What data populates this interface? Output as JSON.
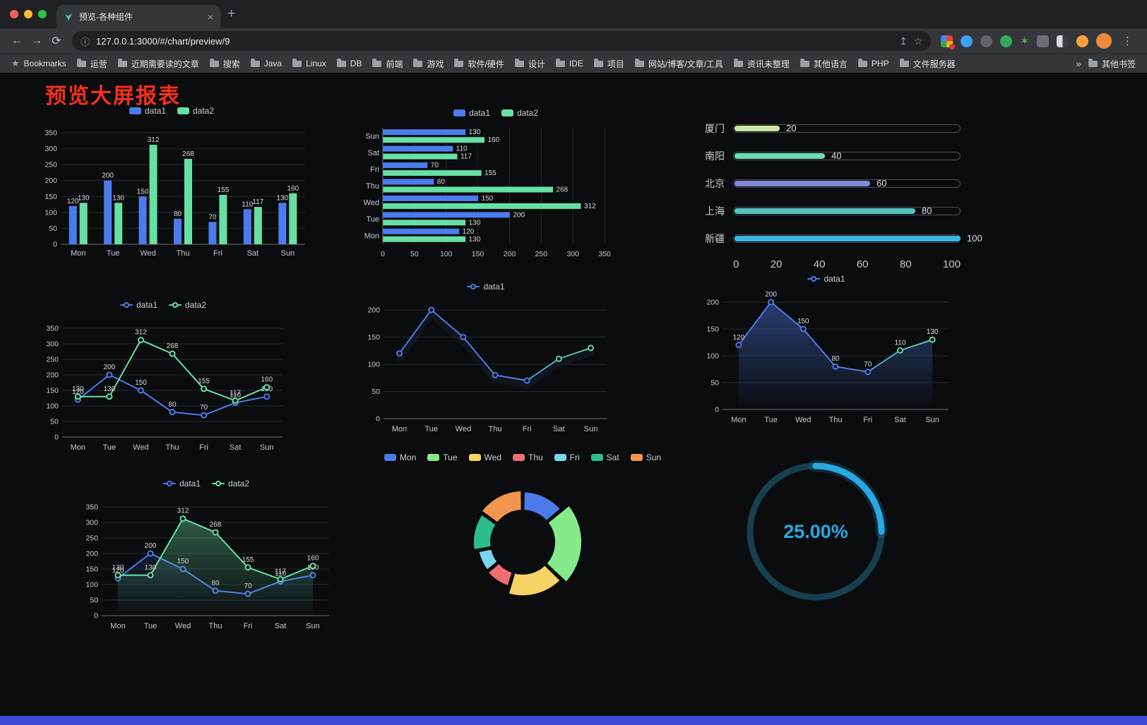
{
  "browser": {
    "tab_title": "预览-各种组件",
    "close_label": "×",
    "new_tab_label": "+",
    "back_icon": "←",
    "forward_icon": "→",
    "reload_icon": "⟳",
    "info_icon": "ⓘ",
    "share_icon": "↥",
    "star_icon": "☆",
    "menu_icon": "⋮",
    "url": "127.0.0.1:3000/#/chart/preview/9",
    "bookmarks_bar": {
      "first_item": "Bookmarks",
      "folders": [
        "运营",
        "近期需要读的文章",
        "搜索",
        "Java",
        "Linux",
        "DB",
        "前端",
        "游戏",
        "软件/硬件",
        "设计",
        "IDE",
        "项目",
        "网站/博客/文章/工具",
        "资讯未整理",
        "其他语言",
        "PHP",
        "文件服务器"
      ],
      "overflow": "»",
      "other_bookmarks": "其他书签"
    }
  },
  "page": {
    "title": "预览大屏报表",
    "title_color": "#f5301d",
    "footer_color": "#3c4ad6"
  },
  "chart_data": [
    {
      "type": "bar",
      "legend_marker": "bar",
      "show_legend": true,
      "show_labels": true,
      "categories": [
        "Mon",
        "Tue",
        "Wed",
        "Thu",
        "Fri",
        "Sat",
        "Sun"
      ],
      "series": [
        {
          "name": "data1",
          "color": "#4b7bec",
          "values": [
            120,
            200,
            150,
            80,
            70,
            110,
            130
          ]
        },
        {
          "name": "data2",
          "color": "#67e0a3",
          "values": [
            130,
            130,
            312,
            268,
            155,
            117,
            160
          ]
        }
      ],
      "ylim": [
        0,
        350
      ],
      "ytick_step": 50
    },
    {
      "type": "hbar",
      "legend_marker": "bar",
      "show_legend": true,
      "show_labels": true,
      "categories": [
        "Mon",
        "Tue",
        "Wed",
        "Thu",
        "Fri",
        "Sat",
        "Sun"
      ],
      "series": [
        {
          "name": "data1",
          "color": "#4b7bec",
          "values": [
            120,
            200,
            150,
            80,
            70,
            110,
            130
          ]
        },
        {
          "name": "data2",
          "color": "#67e0a3",
          "values": [
            130,
            130,
            312,
            268,
            155,
            117,
            160
          ]
        }
      ],
      "xlim": [
        0,
        350
      ],
      "xtick_step": 50
    },
    {
      "type": "progress",
      "max": 100,
      "xticks": [
        0,
        20,
        40,
        60,
        80,
        100
      ],
      "items": [
        {
          "label": "厦门",
          "value": 20,
          "color": "#cfe6a6"
        },
        {
          "label": "南阳",
          "value": 40,
          "color": "#6fdcb4"
        },
        {
          "label": "北京",
          "value": 60,
          "color": "#8089d8"
        },
        {
          "label": "上海",
          "value": 80,
          "color": "#56c2c5"
        },
        {
          "label": "新疆",
          "value": 100,
          "color": "#3cb4e6"
        }
      ]
    },
    {
      "type": "line",
      "legend_marker": "line",
      "show_legend": true,
      "show_labels": true,
      "categories": [
        "Mon",
        "Tue",
        "Wed",
        "Thu",
        "Fri",
        "Sat",
        "Sun"
      ],
      "series": [
        {
          "name": "data1",
          "color": "#4b7bec",
          "values": [
            120,
            200,
            150,
            80,
            70,
            110,
            130
          ]
        },
        {
          "name": "data2",
          "color": "#67e0a3",
          "values": [
            130,
            130,
            312,
            268,
            155,
            117,
            160
          ]
        }
      ],
      "ylim": [
        0,
        350
      ],
      "ytick_step": 50
    },
    {
      "type": "line",
      "legend_marker": "line",
      "show_legend": true,
      "show_labels": false,
      "shadow": true,
      "categories": [
        "Mon",
        "Tue",
        "Wed",
        "Thu",
        "Fri",
        "Sat",
        "Sun"
      ],
      "series": [
        {
          "name": "data1",
          "color": "#4b7bec",
          "color2": "#5fd6a0",
          "values": [
            120,
            200,
            150,
            80,
            70,
            110,
            130
          ]
        }
      ],
      "ylim": [
        0,
        200
      ],
      "ytick_step": 50
    },
    {
      "type": "line",
      "legend_marker": "line",
      "show_legend": true,
      "show_labels": true,
      "categories": [
        "Mon",
        "Tue",
        "Wed",
        "Thu",
        "Fri",
        "Sat",
        "Sun"
      ],
      "series": [
        {
          "name": "data1",
          "color": "#4b7bec",
          "color2": "#5fd6a0",
          "area": 0.45,
          "values": [
            120,
            200,
            150,
            80,
            70,
            110,
            130
          ]
        }
      ],
      "ylim": [
        0,
        200
      ],
      "ytick_step": 50
    },
    {
      "type": "line",
      "legend_marker": "line",
      "show_legend": true,
      "show_labels": true,
      "categories": [
        "Mon",
        "Tue",
        "Wed",
        "Thu",
        "Fri",
        "Sat",
        "Sun"
      ],
      "series": [
        {
          "name": "data1",
          "color": "#4b7bec",
          "area": 0.15,
          "values": [
            120,
            200,
            150,
            80,
            70,
            110,
            130
          ]
        },
        {
          "name": "data2",
          "color": "#67e0a3",
          "area": 0.38,
          "values": [
            130,
            130,
            312,
            268,
            155,
            117,
            160
          ]
        }
      ],
      "ylim": [
        0,
        350
      ],
      "ytick_step": 50
    },
    {
      "type": "rose",
      "show_legend": true,
      "items": [
        {
          "label": "Mon",
          "value": 120,
          "color": "#4b7bec"
        },
        {
          "label": "Tue",
          "value": 200,
          "color": "#86e98a"
        },
        {
          "label": "Wed",
          "value": 150,
          "color": "#f6d365"
        },
        {
          "label": "Thu",
          "value": 80,
          "color": "#ee6e73"
        },
        {
          "label": "Fri",
          "value": 70,
          "color": "#7ad6f0"
        },
        {
          "label": "Sat",
          "value": 110,
          "color": "#2bbd8e"
        },
        {
          "label": "Sun",
          "value": 130,
          "color": "#f2954f"
        }
      ]
    },
    {
      "type": "gauge",
      "value": 25,
      "label": "25.00%",
      "color": "#28a9e2",
      "track_color": "#16404d"
    }
  ]
}
